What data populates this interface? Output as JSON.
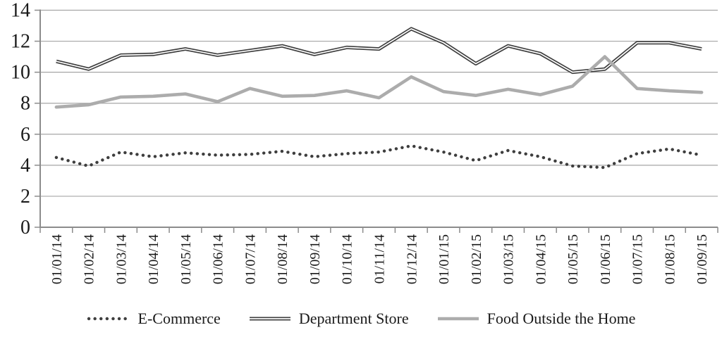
{
  "chart_data": {
    "type": "line",
    "title": "",
    "xlabel": "",
    "ylabel": "",
    "ylim": [
      0,
      14
    ],
    "yticks": [
      0,
      2,
      4,
      6,
      8,
      10,
      12,
      14
    ],
    "grid": true,
    "legend_position": "bottom",
    "colors": {
      "dark_series": "#3e3e3e",
      "gray_series": "#acacac",
      "gridline": "#a6a6a6",
      "axis": "#8c8c8c",
      "text": "#1a1a1a",
      "background": "#ffffff"
    },
    "categories": [
      "01/01/14",
      "01/02/14",
      "01/03/14",
      "01/04/14",
      "01/05/14",
      "01/06/14",
      "01/07/14",
      "01/08/14",
      "01/09/14",
      "01/10/14",
      "01/11/14",
      "01/12/14",
      "01/01/15",
      "01/02/15",
      "01/03/15",
      "01/04/15",
      "01/05/15",
      "01/06/15",
      "01/07/15",
      "01/08/15",
      "01/09/15"
    ],
    "series": [
      {
        "name": "E-Commerce",
        "style": "dotted",
        "color": "#3e3e3e",
        "values": [
          4.5,
          3.95,
          4.85,
          4.55,
          4.8,
          4.65,
          4.7,
          4.9,
          4.55,
          4.75,
          4.85,
          5.25,
          4.85,
          4.3,
          4.95,
          4.55,
          3.95,
          3.85,
          4.75,
          5.05,
          4.65
        ]
      },
      {
        "name": "Department Store",
        "style": "double",
        "color": "#3e3e3e",
        "values": [
          10.7,
          10.2,
          11.1,
          11.15,
          11.5,
          11.1,
          11.4,
          11.7,
          11.15,
          11.6,
          11.5,
          12.8,
          11.9,
          10.55,
          11.7,
          11.2,
          10.0,
          10.2,
          11.9,
          11.9,
          11.5
        ]
      },
      {
        "name": "Food Outside the Home",
        "style": "solid",
        "color": "#acacac",
        "values": [
          7.75,
          7.9,
          8.4,
          8.45,
          8.6,
          8.1,
          8.95,
          8.45,
          8.5,
          8.8,
          8.35,
          9.7,
          8.75,
          8.5,
          8.9,
          8.55,
          9.1,
          11.0,
          8.95,
          8.8,
          8.7
        ]
      }
    ]
  }
}
